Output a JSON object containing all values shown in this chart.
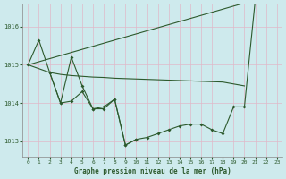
{
  "title": "Graphe pression niveau de la mer (hPa)",
  "background_color": "#ceeaed",
  "line_color": "#2d5a2d",
  "xlim": [
    -0.5,
    23.5
  ],
  "ylim": [
    1012.6,
    1016.6
  ],
  "yticks": [
    1013,
    1014,
    1015,
    1016
  ],
  "xticks": [
    0,
    1,
    2,
    3,
    4,
    5,
    6,
    7,
    8,
    9,
    10,
    11,
    12,
    13,
    14,
    15,
    16,
    17,
    18,
    19,
    20,
    21,
    22,
    23
  ],
  "series": [
    {
      "x": [
        0,
        1,
        2,
        3,
        4,
        5,
        6,
        7,
        8,
        9,
        10,
        11,
        12,
        13,
        14,
        15,
        16,
        17,
        18,
        19,
        20,
        21,
        22
      ],
      "y": [
        1015.0,
        1015.65,
        1014.8,
        1014.0,
        1015.2,
        1014.45,
        1013.85,
        1013.9,
        1014.1,
        1012.9,
        1013.05,
        1013.1,
        1013.2,
        1013.3,
        1013.4,
        1013.45,
        1013.45,
        1013.3,
        1013.2,
        1013.9,
        1013.9,
        1016.7,
        1016.8
      ],
      "marker": true
    },
    {
      "x": [
        0,
        2,
        3,
        4,
        5,
        6,
        7,
        8,
        9,
        10,
        11,
        12,
        13,
        14,
        15,
        16,
        17,
        18,
        19,
        20
      ],
      "y": [
        1015.0,
        1014.8,
        1014.75,
        1014.72,
        1014.7,
        1014.68,
        1014.67,
        1014.65,
        1014.64,
        1014.63,
        1014.62,
        1014.61,
        1014.6,
        1014.59,
        1014.58,
        1014.57,
        1014.56,
        1014.55,
        1014.5,
        1014.45
      ],
      "marker": false
    },
    {
      "x": [
        0,
        21,
        22
      ],
      "y": [
        1015.0,
        1016.7,
        1016.8
      ],
      "marker": false
    },
    {
      "x": [
        2,
        3,
        4,
        5,
        6,
        7,
        8,
        9,
        10
      ],
      "y": [
        1014.8,
        1014.0,
        1014.05,
        1014.3,
        1013.85,
        1013.85,
        1014.1,
        1012.9,
        1013.05
      ],
      "marker": true
    }
  ]
}
